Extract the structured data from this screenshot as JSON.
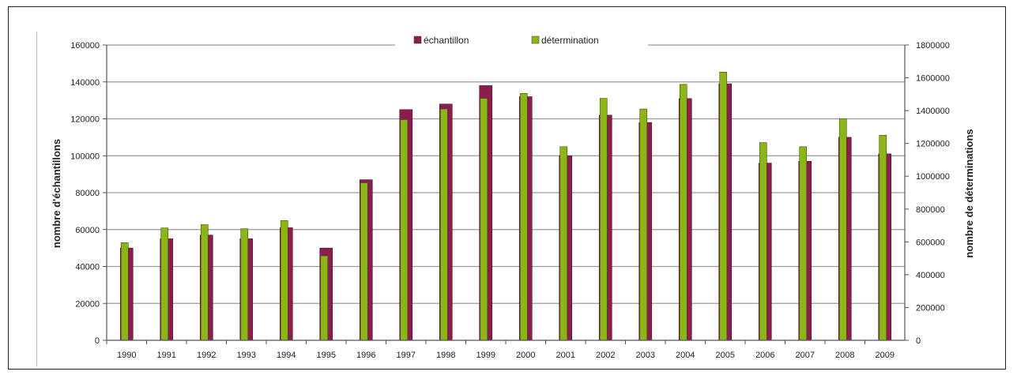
{
  "chart_data": {
    "type": "bar",
    "categories": [
      "1990",
      "1991",
      "1992",
      "1993",
      "1994",
      "1995",
      "1996",
      "1997",
      "1998",
      "1999",
      "2000",
      "2001",
      "2002",
      "2003",
      "2004",
      "2005",
      "2006",
      "2007",
      "2008",
      "2009"
    ],
    "series": [
      {
        "name": "échantillon",
        "axis": "left",
        "color": "#8b1e4f",
        "values": [
          50000,
          55000,
          57000,
          55000,
          61000,
          50000,
          87000,
          125000,
          128000,
          138000,
          132000,
          100000,
          122000,
          118000,
          131000,
          139000,
          96000,
          97000,
          110000,
          101000
        ]
      },
      {
        "name": "détermination",
        "axis": "right",
        "color": "#8cb518",
        "values": [
          595000,
          685000,
          705000,
          680000,
          730000,
          515000,
          960000,
          1345000,
          1410000,
          1475000,
          1505000,
          1180000,
          1475000,
          1410000,
          1560000,
          1635000,
          1205000,
          1180000,
          1350000,
          1250000
        ]
      }
    ],
    "ylabel_left": "nombre d'échantillons",
    "ylabel_right": "nombre de déterminations",
    "ylim_left": [
      0,
      160000
    ],
    "ylim_right": [
      0,
      1800000
    ],
    "yticks_left": [
      "0",
      "20000",
      "40000",
      "60000",
      "80000",
      "100000",
      "120000",
      "140000",
      "160000"
    ],
    "yticks_right": [
      "0",
      "200000",
      "400000",
      "600000",
      "800000",
      "1000000",
      "1200000",
      "1400000",
      "1600000",
      "1800000"
    ],
    "legend_position": "top-center",
    "grid": true
  }
}
